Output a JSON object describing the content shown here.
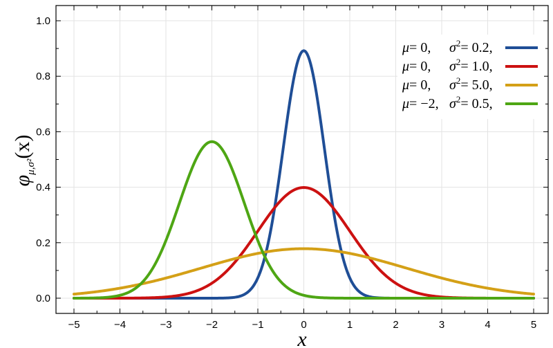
{
  "chart_data": {
    "type": "line",
    "title": "",
    "xlabel": "x",
    "ylabel": "φ_{μ,σ²}(x)",
    "ylabel_main": "φ",
    "ylabel_sub": "μ,σ²",
    "ylabel_arg": "(x)",
    "xlim": [
      -5,
      5
    ],
    "ylim": [
      0,
      1.05
    ],
    "x_ticks": [
      -5,
      -4,
      -3,
      -2,
      -1,
      0,
      1,
      2,
      3,
      4,
      5
    ],
    "x_tick_labels": [
      "−5",
      "−4",
      "−3",
      "−2",
      "−1",
      "0",
      "1",
      "2",
      "3",
      "4",
      "5"
    ],
    "y_ticks": [
      0,
      0.2,
      0.4,
      0.6,
      0.8,
      1.0
    ],
    "y_tick_labels": [
      "0.0",
      "0.2",
      "0.4",
      "0.6",
      "0.8",
      "1.0"
    ],
    "grid": true,
    "legend_position": "top-right",
    "series": [
      {
        "mu_label": "μ",
        "mu_eq": "= 0,",
        "sigma_label": "σ",
        "sigma_eq": "= 0.2,",
        "mu": 0,
        "variance": 0.2,
        "color": "#1f4e96"
      },
      {
        "mu_label": "μ",
        "mu_eq": "= 0,",
        "sigma_label": "σ",
        "sigma_eq": "= 1.0,",
        "mu": 0,
        "variance": 1.0,
        "color": "#cc1111"
      },
      {
        "mu_label": "μ",
        "mu_eq": "= 0,",
        "sigma_label": "σ",
        "sigma_eq": "= 5.0,",
        "mu": 0,
        "variance": 5.0,
        "color": "#d4a017"
      },
      {
        "mu_label": "μ",
        "mu_eq": "= −2,",
        "sigma_label": "σ",
        "sigma_eq": "= 0.5,",
        "mu": -2,
        "variance": 0.5,
        "color": "#4ea614"
      }
    ]
  }
}
